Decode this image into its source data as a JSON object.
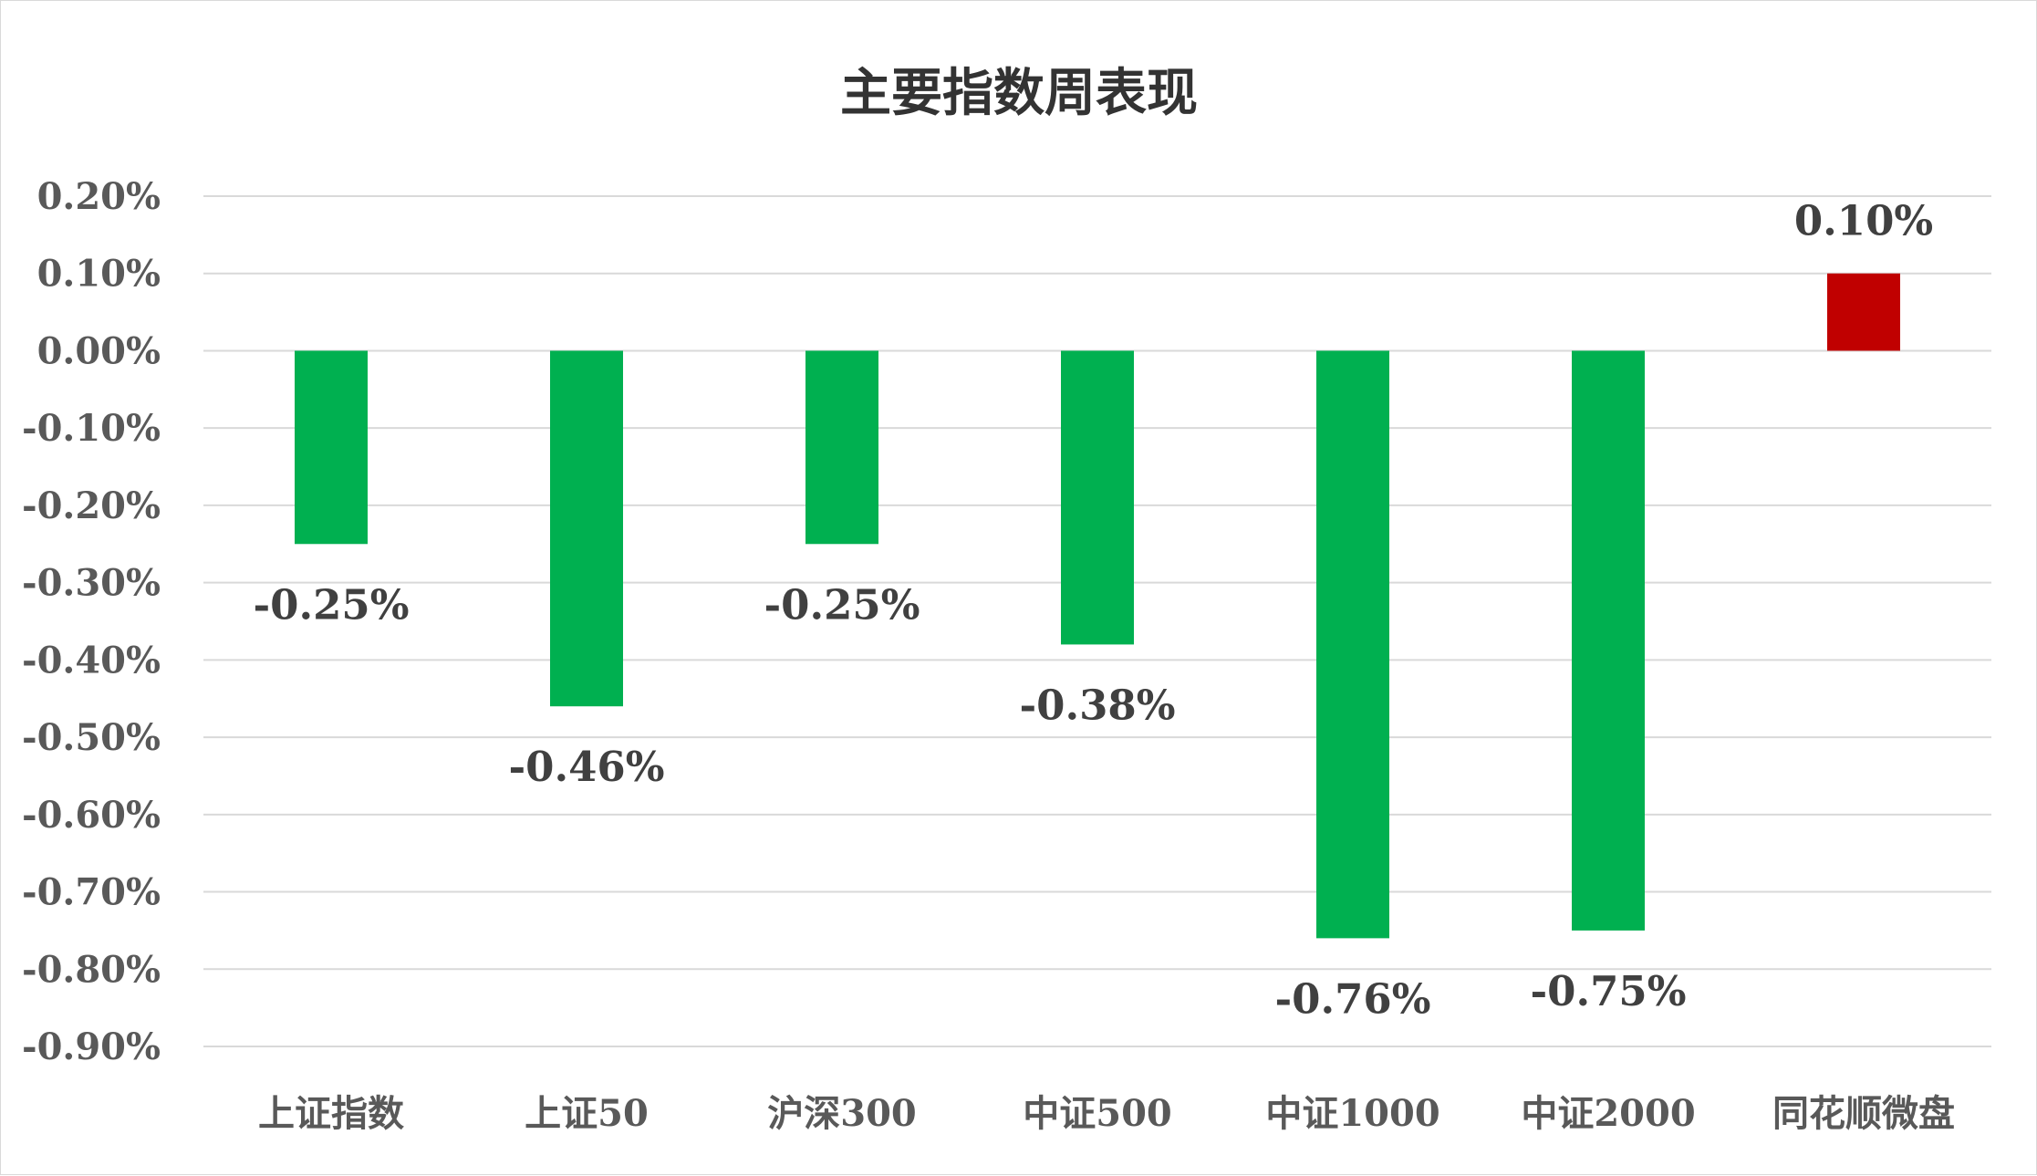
{
  "chart_data": {
    "type": "bar",
    "title": "主要指数周表现",
    "categories": [
      "上证指数",
      "上证50",
      "沪深300",
      "中证500",
      "中证1000",
      "中证2000",
      "同花顺微盘"
    ],
    "values": [
      -0.25,
      -0.46,
      -0.25,
      -0.38,
      -0.76,
      -0.75,
      0.1
    ],
    "value_labels": [
      "-0.25%",
      "-0.46%",
      "-0.25%",
      "-0.38%",
      "-0.76%",
      "-0.75%",
      "0.10%"
    ],
    "yticks": [
      0.2,
      0.1,
      0.0,
      -0.1,
      -0.2,
      -0.3,
      -0.4,
      -0.5,
      -0.6,
      -0.7,
      -0.8,
      -0.9
    ],
    "ytick_labels": [
      "0.20%",
      "0.10%",
      "0.00%",
      "-0.10%",
      "-0.20%",
      "-0.30%",
      "-0.40%",
      "-0.50%",
      "-0.60%",
      "-0.70%",
      "-0.80%",
      "-0.90%"
    ],
    "ylim": [
      -0.9,
      0.2
    ],
    "unit": "%",
    "grid": true,
    "colors": {
      "negative": "#00b050",
      "positive": "#c00000"
    }
  }
}
